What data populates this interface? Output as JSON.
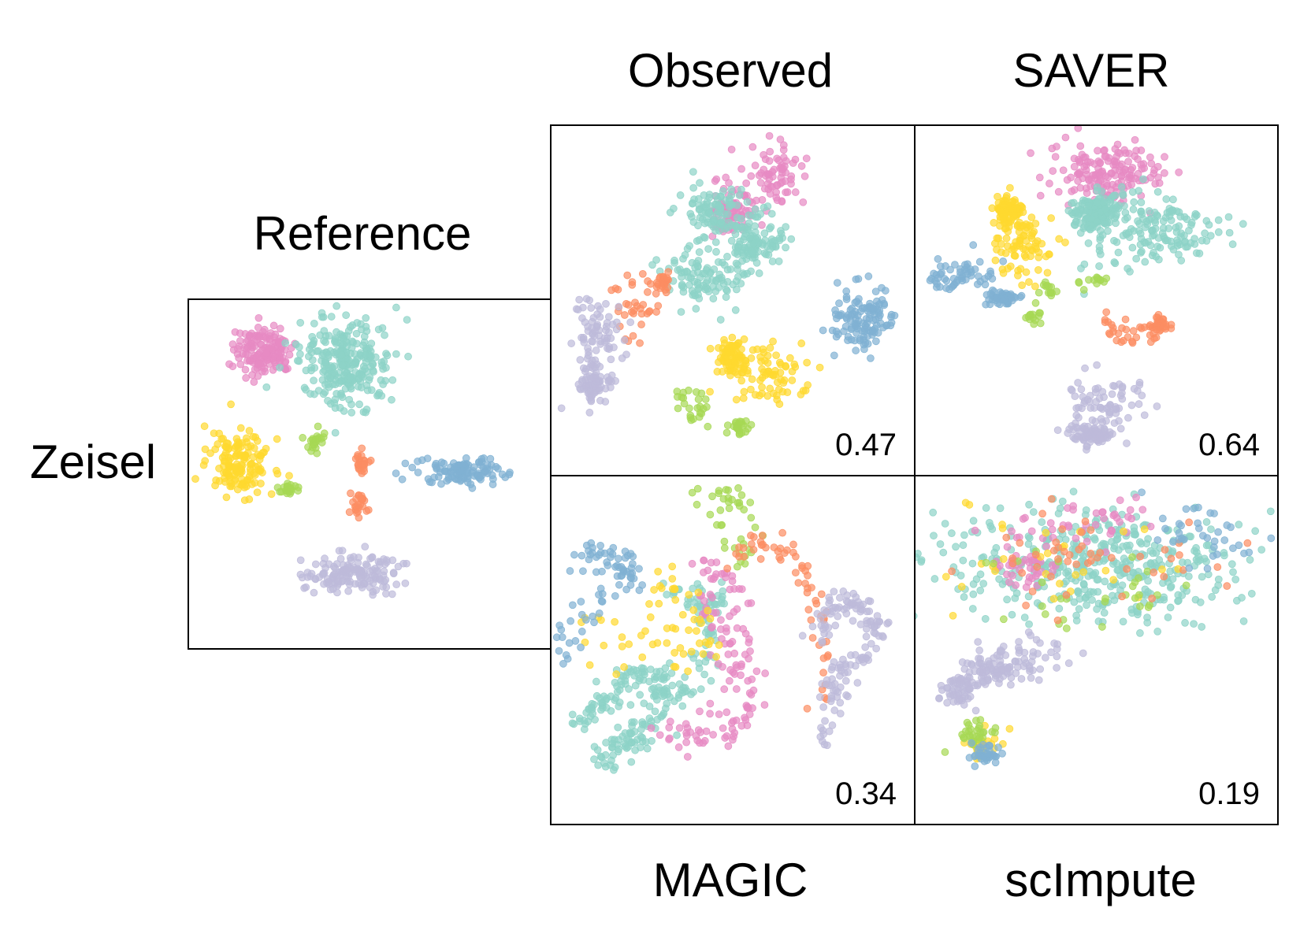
{
  "figure": {
    "row_label": "Zeisel",
    "colors": {
      "pink": "#e78ac3",
      "teal": "#8dd3c7",
      "yellow": "#ffd92f",
      "green": "#a6d854",
      "orange": "#fc8d62",
      "blue": "#80b1d3",
      "lavender": "#bebada"
    }
  },
  "chart_data": [
    {
      "type": "scatter",
      "panel": "reference",
      "title": "Reference",
      "clusters": [
        {
          "color": "pink",
          "n": 150
        },
        {
          "color": "teal",
          "n": 280
        },
        {
          "color": "yellow",
          "n": 150
        },
        {
          "color": "green",
          "n": 45
        },
        {
          "color": "orange",
          "n": 50
        },
        {
          "color": "blue",
          "n": 110
        },
        {
          "color": "lavender",
          "n": 150
        }
      ]
    },
    {
      "type": "scatter",
      "panel": "observed",
      "title": "Observed",
      "score": "0.47",
      "clusters": [
        {
          "color": "pink",
          "n": 150
        },
        {
          "color": "teal",
          "n": 300
        },
        {
          "color": "yellow",
          "n": 150
        },
        {
          "color": "green",
          "n": 50
        },
        {
          "color": "orange",
          "n": 60
        },
        {
          "color": "blue",
          "n": 120
        },
        {
          "color": "lavender",
          "n": 140
        }
      ]
    },
    {
      "type": "scatter",
      "panel": "saver",
      "title": "SAVER",
      "score": "0.64",
      "clusters": [
        {
          "color": "pink",
          "n": 160
        },
        {
          "color": "teal",
          "n": 300
        },
        {
          "color": "yellow",
          "n": 160
        },
        {
          "color": "green",
          "n": 40
        },
        {
          "color": "orange",
          "n": 60
        },
        {
          "color": "blue",
          "n": 110
        },
        {
          "color": "lavender",
          "n": 150
        }
      ]
    },
    {
      "type": "scatter",
      "panel": "magic",
      "title": "MAGIC",
      "score": "0.34",
      "clusters": [
        {
          "color": "teal",
          "n": 260
        },
        {
          "color": "pink",
          "n": 130
        },
        {
          "color": "yellow",
          "n": 60
        },
        {
          "color": "green",
          "n": 40
        },
        {
          "color": "orange",
          "n": 60
        },
        {
          "color": "blue",
          "n": 80
        },
        {
          "color": "lavender",
          "n": 140
        }
      ]
    },
    {
      "type": "scatter",
      "panel": "scimpute",
      "title": "scImpute",
      "score": "0.19",
      "clusters": [
        {
          "color": "teal",
          "n": 420
        },
        {
          "color": "pink",
          "n": 80
        },
        {
          "color": "yellow",
          "n": 60
        },
        {
          "color": "green",
          "n": 60
        },
        {
          "color": "orange",
          "n": 50
        },
        {
          "color": "blue",
          "n": 70
        },
        {
          "color": "lavender",
          "n": 170
        }
      ]
    }
  ]
}
